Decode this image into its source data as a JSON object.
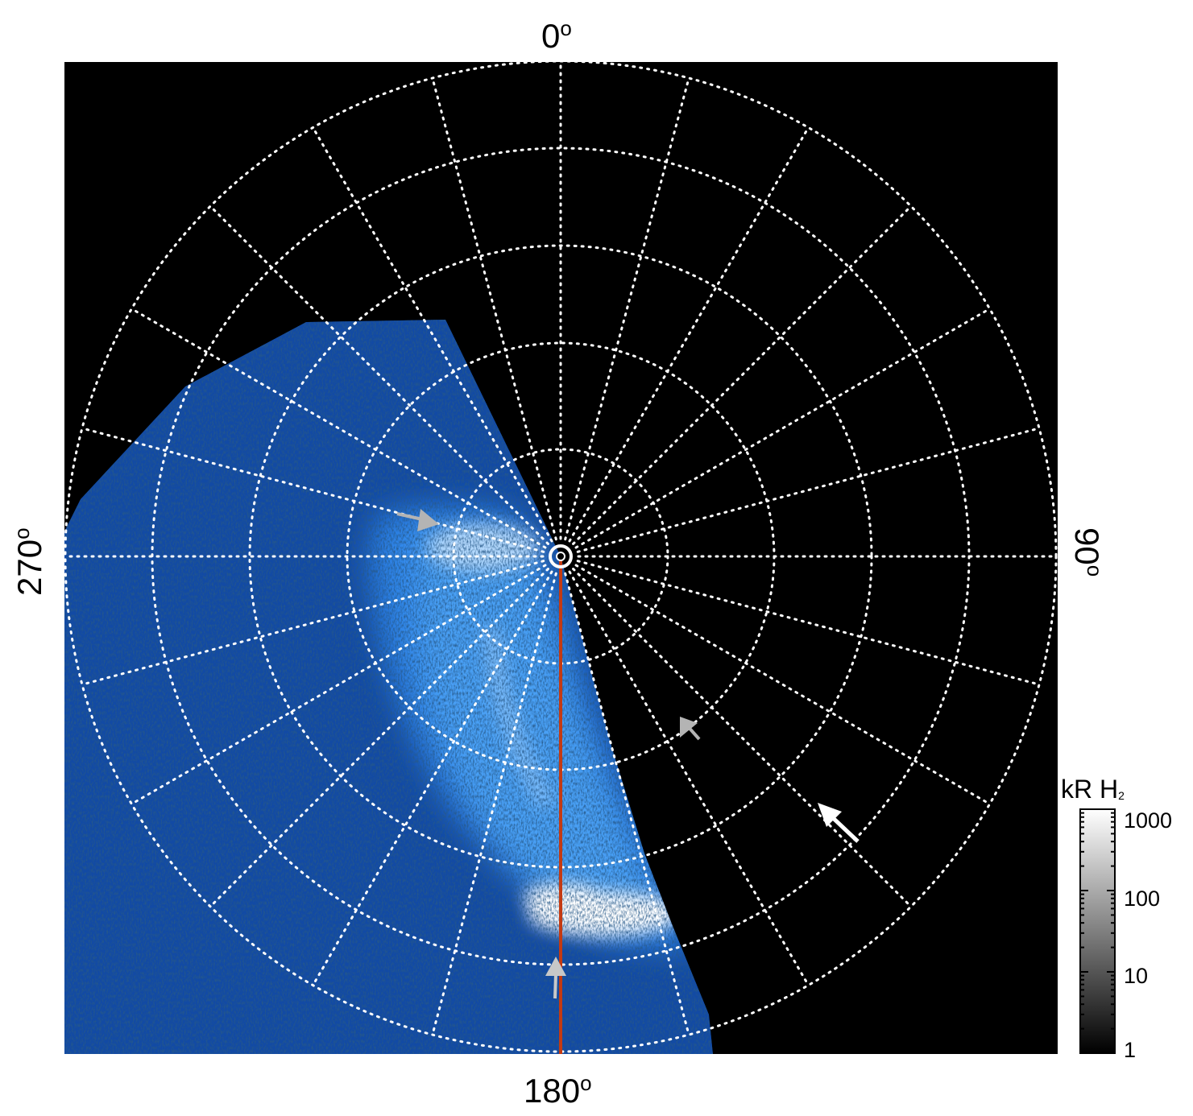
{
  "plot": {
    "label_top": "0",
    "label_right": "90",
    "label_bottom": "180",
    "label_left": "270",
    "degree_symbol": "o"
  },
  "colorbar": {
    "title": "kR H",
    "title_subscript": "2",
    "ticks": [
      "1000",
      "100",
      "10",
      "1"
    ],
    "scale": "log",
    "range": [
      1,
      1000
    ]
  },
  "colors": {
    "background": "#000000",
    "grid": "#ffffff",
    "aurora_low": "#0b2a6a",
    "aurora_mid": "#1e6fd9",
    "aurora_high": "#ffffff",
    "meridian_line": "#c43a12",
    "arrow_gray": "#b4b4b4",
    "arrow_white": "#ffffff"
  },
  "icons": [
    "arrow-gray",
    "arrow-white",
    "pole-marker"
  ]
}
